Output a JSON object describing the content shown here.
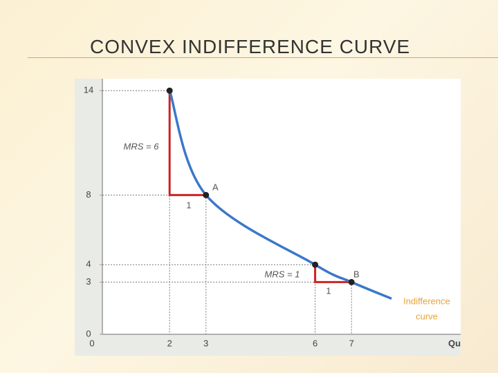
{
  "chart_data": {
    "type": "line",
    "title": "CONVEX INDIFFERENCE CURVE",
    "x_label": "Qu",
    "x": [
      2,
      3,
      6,
      7,
      8.1
    ],
    "series": [
      {
        "color": "#3a78c9",
        "values": [
          14,
          8,
          4,
          3,
          2.05
        ]
      }
    ],
    "markers": [
      true,
      true,
      true,
      true,
      false
    ],
    "marker_color": "#222222",
    "step_color": "#cc2222",
    "xlim": [
      0,
      10
    ],
    "ylim": [
      0,
      15
    ],
    "xticks": [
      0,
      2,
      3,
      6,
      7
    ],
    "yticks": [
      0,
      3,
      4,
      8,
      14
    ],
    "annotations": [
      "MRS = 6",
      "1",
      "A",
      "MRS = 1",
      "1",
      "B",
      "Indifference",
      "curve"
    ]
  }
}
